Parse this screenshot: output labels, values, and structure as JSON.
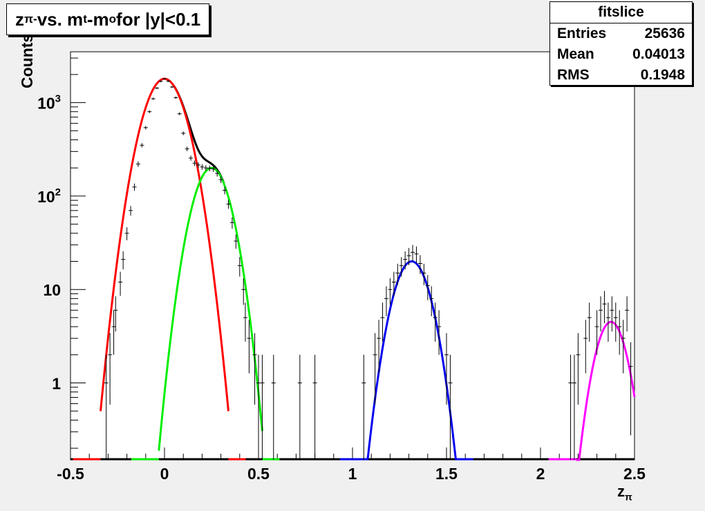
{
  "chart_data": {
    "type": "histogram_with_fits",
    "title_main": "z",
    "title_sub": "π-",
    "title_rest": " vs. m",
    "title_sub2": "t",
    "title_rest2": "-m",
    "title_sub3": "o",
    "title_rest3": " for |y|<0.1",
    "xlabel_main": "z",
    "xlabel_sub": "π",
    "ylabel": "Counts",
    "xlim": [
      -0.5,
      2.5
    ],
    "ylim": [
      0.15,
      3500
    ],
    "yscale": "log",
    "x_ticks": [
      "-0.5",
      "0",
      "0.5",
      "1",
      "1.5",
      "2",
      "2.5"
    ],
    "y_ticks": [
      {
        "value": 1,
        "label": "1"
      },
      {
        "value": 10,
        "label": "10"
      },
      {
        "value": 100,
        "label": "10",
        "exp": "2"
      },
      {
        "value": 1000,
        "label": "10",
        "exp": "3"
      }
    ],
    "stats": {
      "name": "fitslice",
      "rows": [
        {
          "label": "Entries",
          "value": "25636"
        },
        {
          "label": "Mean",
          "value": "0.04013"
        },
        {
          "label": "RMS",
          "value": "0.1948"
        }
      ]
    },
    "fits": [
      {
        "color": "#ff0000",
        "amplitude": 1800,
        "mean": 0.0,
        "sigma": 0.084,
        "range": [
          -0.34,
          0.34
        ]
      },
      {
        "color": "#00ee00",
        "amplitude": 200,
        "mean": 0.25,
        "sigma": 0.075,
        "range": [
          -0.03,
          0.52
        ]
      },
      {
        "color": "#0000ee",
        "amplitude": 20,
        "mean": 1.315,
        "sigma": 0.075,
        "range": [
          1.08,
          1.55
        ]
      },
      {
        "color": "#ff00ff",
        "amplitude": 4.5,
        "mean": 2.375,
        "sigma": 0.065,
        "range": [
          2.19,
          2.5
        ]
      }
    ],
    "total_fit_color": "#000000",
    "data_points": [
      [
        -0.31,
        1
      ],
      [
        -0.29,
        2
      ],
      [
        -0.27,
        4
      ],
      [
        -0.26,
        6
      ],
      [
        -0.235,
        12
      ],
      [
        -0.22,
        21
      ],
      [
        -0.2,
        40
      ],
      [
        -0.18,
        70
      ],
      [
        -0.16,
        125
      ],
      [
        -0.14,
        220
      ],
      [
        -0.12,
        350
      ],
      [
        -0.1,
        540
      ],
      [
        -0.08,
        800
      ],
      [
        -0.06,
        1100
      ],
      [
        -0.04,
        1430
      ],
      [
        -0.02,
        1690
      ],
      [
        0.0,
        1800
      ],
      [
        0.02,
        1700
      ],
      [
        0.04,
        1470
      ],
      [
        0.06,
        1130
      ],
      [
        0.08,
        760
      ],
      [
        0.1,
        470
      ],
      [
        0.12,
        320
      ],
      [
        0.14,
        255
      ],
      [
        0.16,
        225
      ],
      [
        0.18,
        215
      ],
      [
        0.2,
        205
      ],
      [
        0.22,
        200
      ],
      [
        0.24,
        198
      ],
      [
        0.26,
        195
      ],
      [
        0.28,
        175
      ],
      [
        0.3,
        150
      ],
      [
        0.32,
        115
      ],
      [
        0.34,
        82
      ],
      [
        0.36,
        52
      ],
      [
        0.38,
        33
      ],
      [
        0.4,
        18
      ],
      [
        0.42,
        10
      ],
      [
        0.43,
        5
      ],
      [
        0.45,
        3
      ],
      [
        0.48,
        2
      ],
      [
        0.5,
        1
      ],
      [
        0.52,
        1
      ],
      [
        0.58,
        1
      ],
      [
        0.72,
        1
      ],
      [
        0.8,
        1
      ],
      [
        1.06,
        1
      ],
      [
        1.12,
        2
      ],
      [
        1.14,
        3
      ],
      [
        1.16,
        5
      ],
      [
        1.18,
        8
      ],
      [
        1.2,
        10
      ],
      [
        1.22,
        12
      ],
      [
        1.24,
        15
      ],
      [
        1.26,
        18
      ],
      [
        1.28,
        21
      ],
      [
        1.3,
        23
      ],
      [
        1.32,
        25
      ],
      [
        1.34,
        24
      ],
      [
        1.36,
        19
      ],
      [
        1.38,
        15
      ],
      [
        1.4,
        11
      ],
      [
        1.42,
        8
      ],
      [
        1.44,
        5
      ],
      [
        1.46,
        4
      ],
      [
        1.5,
        2
      ],
      [
        1.52,
        1
      ],
      [
        2.16,
        1
      ],
      [
        2.18,
        1
      ],
      [
        2.2,
        2
      ],
      [
        2.24,
        3
      ],
      [
        2.26,
        5
      ],
      [
        2.3,
        4
      ],
      [
        2.32,
        6
      ],
      [
        2.34,
        7
      ],
      [
        2.36,
        5
      ],
      [
        2.38,
        6
      ],
      [
        2.4,
        5
      ],
      [
        2.42,
        4
      ],
      [
        2.44,
        3
      ],
      [
        2.46,
        6
      ],
      [
        2.48,
        1.5
      ]
    ]
  }
}
